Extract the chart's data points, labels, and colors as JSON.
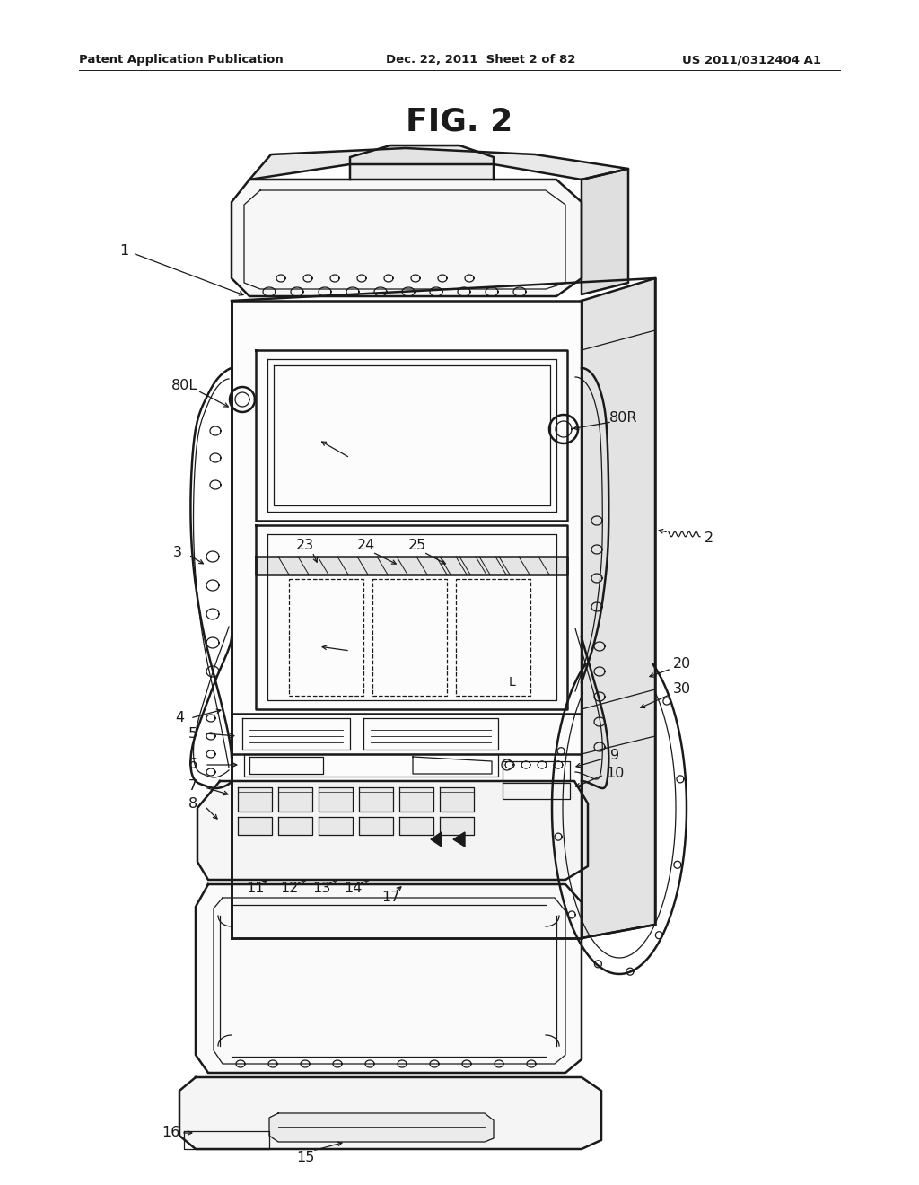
{
  "title": "FIG. 2",
  "header_left": "Patent Application Publication",
  "header_center": "Dec. 22, 2011  Sheet 2 of 82",
  "header_right": "US 2011/0312404 A1",
  "bg_color": "#ffffff",
  "line_color": "#1a1a1a",
  "lw_main": 1.8,
  "lw_thin": 0.9,
  "lw_thick": 2.5,
  "fig_width": 10.24,
  "fig_height": 13.2,
  "dpi": 100
}
